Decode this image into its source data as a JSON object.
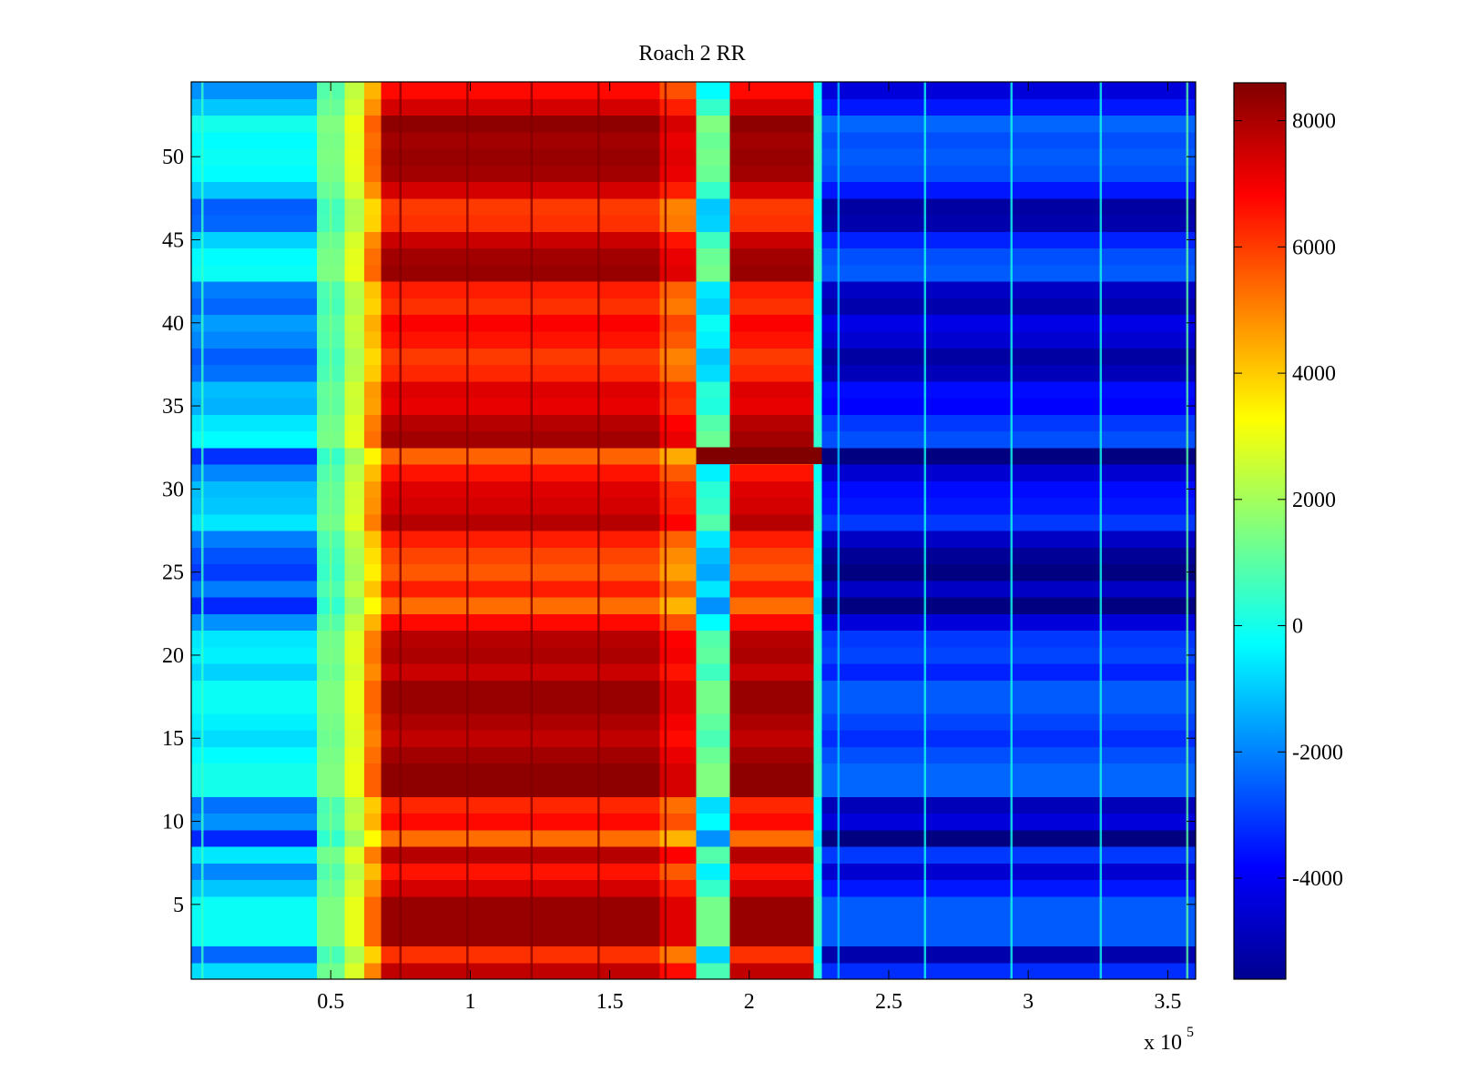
{
  "chart_data": {
    "type": "heatmap",
    "title": "Roach 2 RR",
    "xlabel": "",
    "ylabel": "",
    "x_multiplier_label": "x 10",
    "x_multiplier_exponent": "5",
    "xlim": [
      0,
      360000
    ],
    "ylim": [
      0.5,
      54.5
    ],
    "x_ticks": [
      50000,
      100000,
      150000,
      200000,
      250000,
      300000,
      350000
    ],
    "x_tick_labels": [
      "0.5",
      "1",
      "1.5",
      "2",
      "2.5",
      "3",
      "3.5"
    ],
    "y_ticks": [
      5,
      10,
      15,
      20,
      25,
      30,
      35,
      40,
      45,
      50
    ],
    "y_tick_labels": [
      "5",
      "10",
      "15",
      "20",
      "25",
      "30",
      "35",
      "40",
      "45",
      "50"
    ],
    "rows": 54,
    "colormap": "jet",
    "colorbar": {
      "range": [
        -5600,
        8600
      ],
      "ticks": [
        8000,
        6000,
        4000,
        2000,
        0,
        -2000,
        -4000
      ],
      "tick_labels": [
        "8000",
        "6000",
        "4000",
        "2000",
        "0",
        "-2000",
        "-4000"
      ]
    },
    "column_bands": [
      {
        "x_start": 0,
        "x_end": 45000,
        "value": -1500,
        "row_variation": 1500
      },
      {
        "x_start": 45000,
        "x_end": 55000,
        "value": 1000,
        "row_variation": 500
      },
      {
        "x_start": 55000,
        "x_end": 62000,
        "value": 2500,
        "row_variation": 500
      },
      {
        "x_start": 62000,
        "x_end": 68000,
        "value": 4500,
        "row_variation": 1000
      },
      {
        "x_start": 68000,
        "x_end": 168000,
        "value": 7000,
        "row_variation": 1400
      },
      {
        "x_start": 168000,
        "x_end": 181000,
        "value": 6000,
        "row_variation": 1400
      },
      {
        "x_start": 181000,
        "x_end": 193000,
        "value": 0,
        "row_variation": 1500
      },
      {
        "x_start": 193000,
        "x_end": 223000,
        "value": 7000,
        "row_variation": 1400
      },
      {
        "x_start": 223000,
        "x_end": 226000,
        "value": 0,
        "row_variation": 500
      },
      {
        "x_start": 226000,
        "x_end": 360000,
        "value": -4000,
        "row_variation": 1600
      }
    ],
    "row_effects": [
      {
        "row": 1,
        "offset": 500
      },
      {
        "row": 2,
        "offset": -600
      },
      {
        "row": 3,
        "offset": 900
      },
      {
        "row": 4,
        "offset": 900
      },
      {
        "row": 5,
        "offset": 900
      },
      {
        "row": 6,
        "offset": 300
      },
      {
        "row": 7,
        "offset": -300
      },
      {
        "row": 8,
        "offset": 600
      },
      {
        "row": 9,
        "offset": -1200
      },
      {
        "row": 10,
        "offset": -200
      },
      {
        "row": 11,
        "offset": -500
      },
      {
        "row": 12,
        "offset": 1000
      },
      {
        "row": 13,
        "offset": 1000
      },
      {
        "row": 14,
        "offset": 800
      },
      {
        "row": 15,
        "offset": 500
      },
      {
        "row": 16,
        "offset": 700
      },
      {
        "row": 17,
        "offset": 900
      },
      {
        "row": 18,
        "offset": 900
      },
      {
        "row": 19,
        "offset": 400
      },
      {
        "row": 20,
        "offset": 700
      },
      {
        "row": 21,
        "offset": 600
      },
      {
        "row": 22,
        "offset": -200
      },
      {
        "row": 23,
        "offset": -1200
      },
      {
        "row": 24,
        "offset": -400
      },
      {
        "row": 25,
        "offset": -1000
      },
      {
        "row": 26,
        "offset": -800
      },
      {
        "row": 27,
        "offset": -400
      },
      {
        "row": 28,
        "offset": 600
      },
      {
        "row": 29,
        "offset": 300
      },
      {
        "row": 30,
        "offset": 200
      },
      {
        "row": 31,
        "offset": -300
      },
      {
        "row": 32,
        "offset": -1100
      },
      {
        "row": 33,
        "offset": 800
      },
      {
        "row": 34,
        "offset": 600
      },
      {
        "row": 35,
        "offset": 100
      },
      {
        "row": 36,
        "offset": 200
      },
      {
        "row": 37,
        "offset": -500
      },
      {
        "row": 38,
        "offset": -700
      },
      {
        "row": 39,
        "offset": -300
      },
      {
        "row": 40,
        "offset": -100
      },
      {
        "row": 41,
        "offset": -600
      },
      {
        "row": 42,
        "offset": -400
      },
      {
        "row": 43,
        "offset": 900
      },
      {
        "row": 44,
        "offset": 800
      },
      {
        "row": 45,
        "offset": 400
      },
      {
        "row": 46,
        "offset": -600
      },
      {
        "row": 47,
        "offset": -700
      },
      {
        "row": 48,
        "offset": 300
      },
      {
        "row": 49,
        "offset": 800
      },
      {
        "row": 50,
        "offset": 900
      },
      {
        "row": 51,
        "offset": 800
      },
      {
        "row": 52,
        "offset": 1000
      },
      {
        "row": 53,
        "offset": 300
      },
      {
        "row": 54,
        "offset": -200
      }
    ],
    "vertical_lines": [
      {
        "x": 4000,
        "value": 500
      },
      {
        "x": 50000,
        "value": 1500
      },
      {
        "x": 75000,
        "value": 8600
      },
      {
        "x": 99000,
        "value": 8600
      },
      {
        "x": 122000,
        "value": 8600
      },
      {
        "x": 146000,
        "value": 8600
      },
      {
        "x": 170000,
        "value": 8600
      },
      {
        "x": 232000,
        "value": -1000
      },
      {
        "x": 263000,
        "value": 0
      },
      {
        "x": 294000,
        "value": 0
      },
      {
        "x": 326000,
        "value": 0
      },
      {
        "x": 357000,
        "value": 1000
      }
    ],
    "anomaly_row": {
      "row": 32,
      "x_start": 181000,
      "x_end": 226000,
      "value": 8600
    }
  }
}
